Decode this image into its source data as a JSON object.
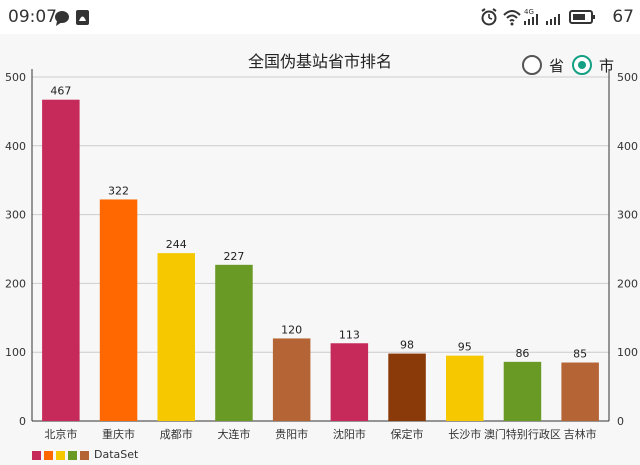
{
  "status_bar": {
    "time": "09:07",
    "left_icons": [
      "chat-bubble-icon",
      "notification-bell-icon"
    ],
    "right_icons": [
      "alarm-icon",
      "wifi-icon",
      "cellular-4g-icon",
      "cellular-icon",
      "battery-icon"
    ],
    "network_label": "4G",
    "battery": "67"
  },
  "chart_header": {
    "title": "全国伪基站省市排名"
  },
  "radio": {
    "province_label": "省",
    "city_label": "市",
    "selected": "市"
  },
  "colors": {
    "accent": "#14a083",
    "grid": "#cccccc",
    "axis_text": "#333333"
  },
  "chart_data": {
    "type": "bar",
    "title": "全国伪基站省市排名",
    "categories": [
      "北京市",
      "重庆市",
      "成都市",
      "大连市",
      "贵阳市",
      "沈阳市",
      "保定市",
      "长沙市",
      "澳门特别行政区",
      "吉林市"
    ],
    "values": [
      467,
      322,
      244,
      227,
      120,
      113,
      98,
      95,
      86,
      85
    ],
    "bar_colors": [
      "#c62a5a",
      "#ff6700",
      "#f5c800",
      "#6a9a26",
      "#b56436",
      "#c62a5a",
      "#8a3a08",
      "#f5c800",
      "#6a9a26",
      "#b56436"
    ],
    "ylim": [
      0,
      500
    ],
    "yticks": [
      0,
      100,
      200,
      300,
      400,
      500
    ],
    "grid": true,
    "dual_y_axis": true,
    "legend": {
      "placement": "bottom-left",
      "swatch_colors": [
        "#c62a5a",
        "#ff6700",
        "#f5c800",
        "#6a9a26",
        "#b56436"
      ],
      "label": "DataSet"
    }
  }
}
